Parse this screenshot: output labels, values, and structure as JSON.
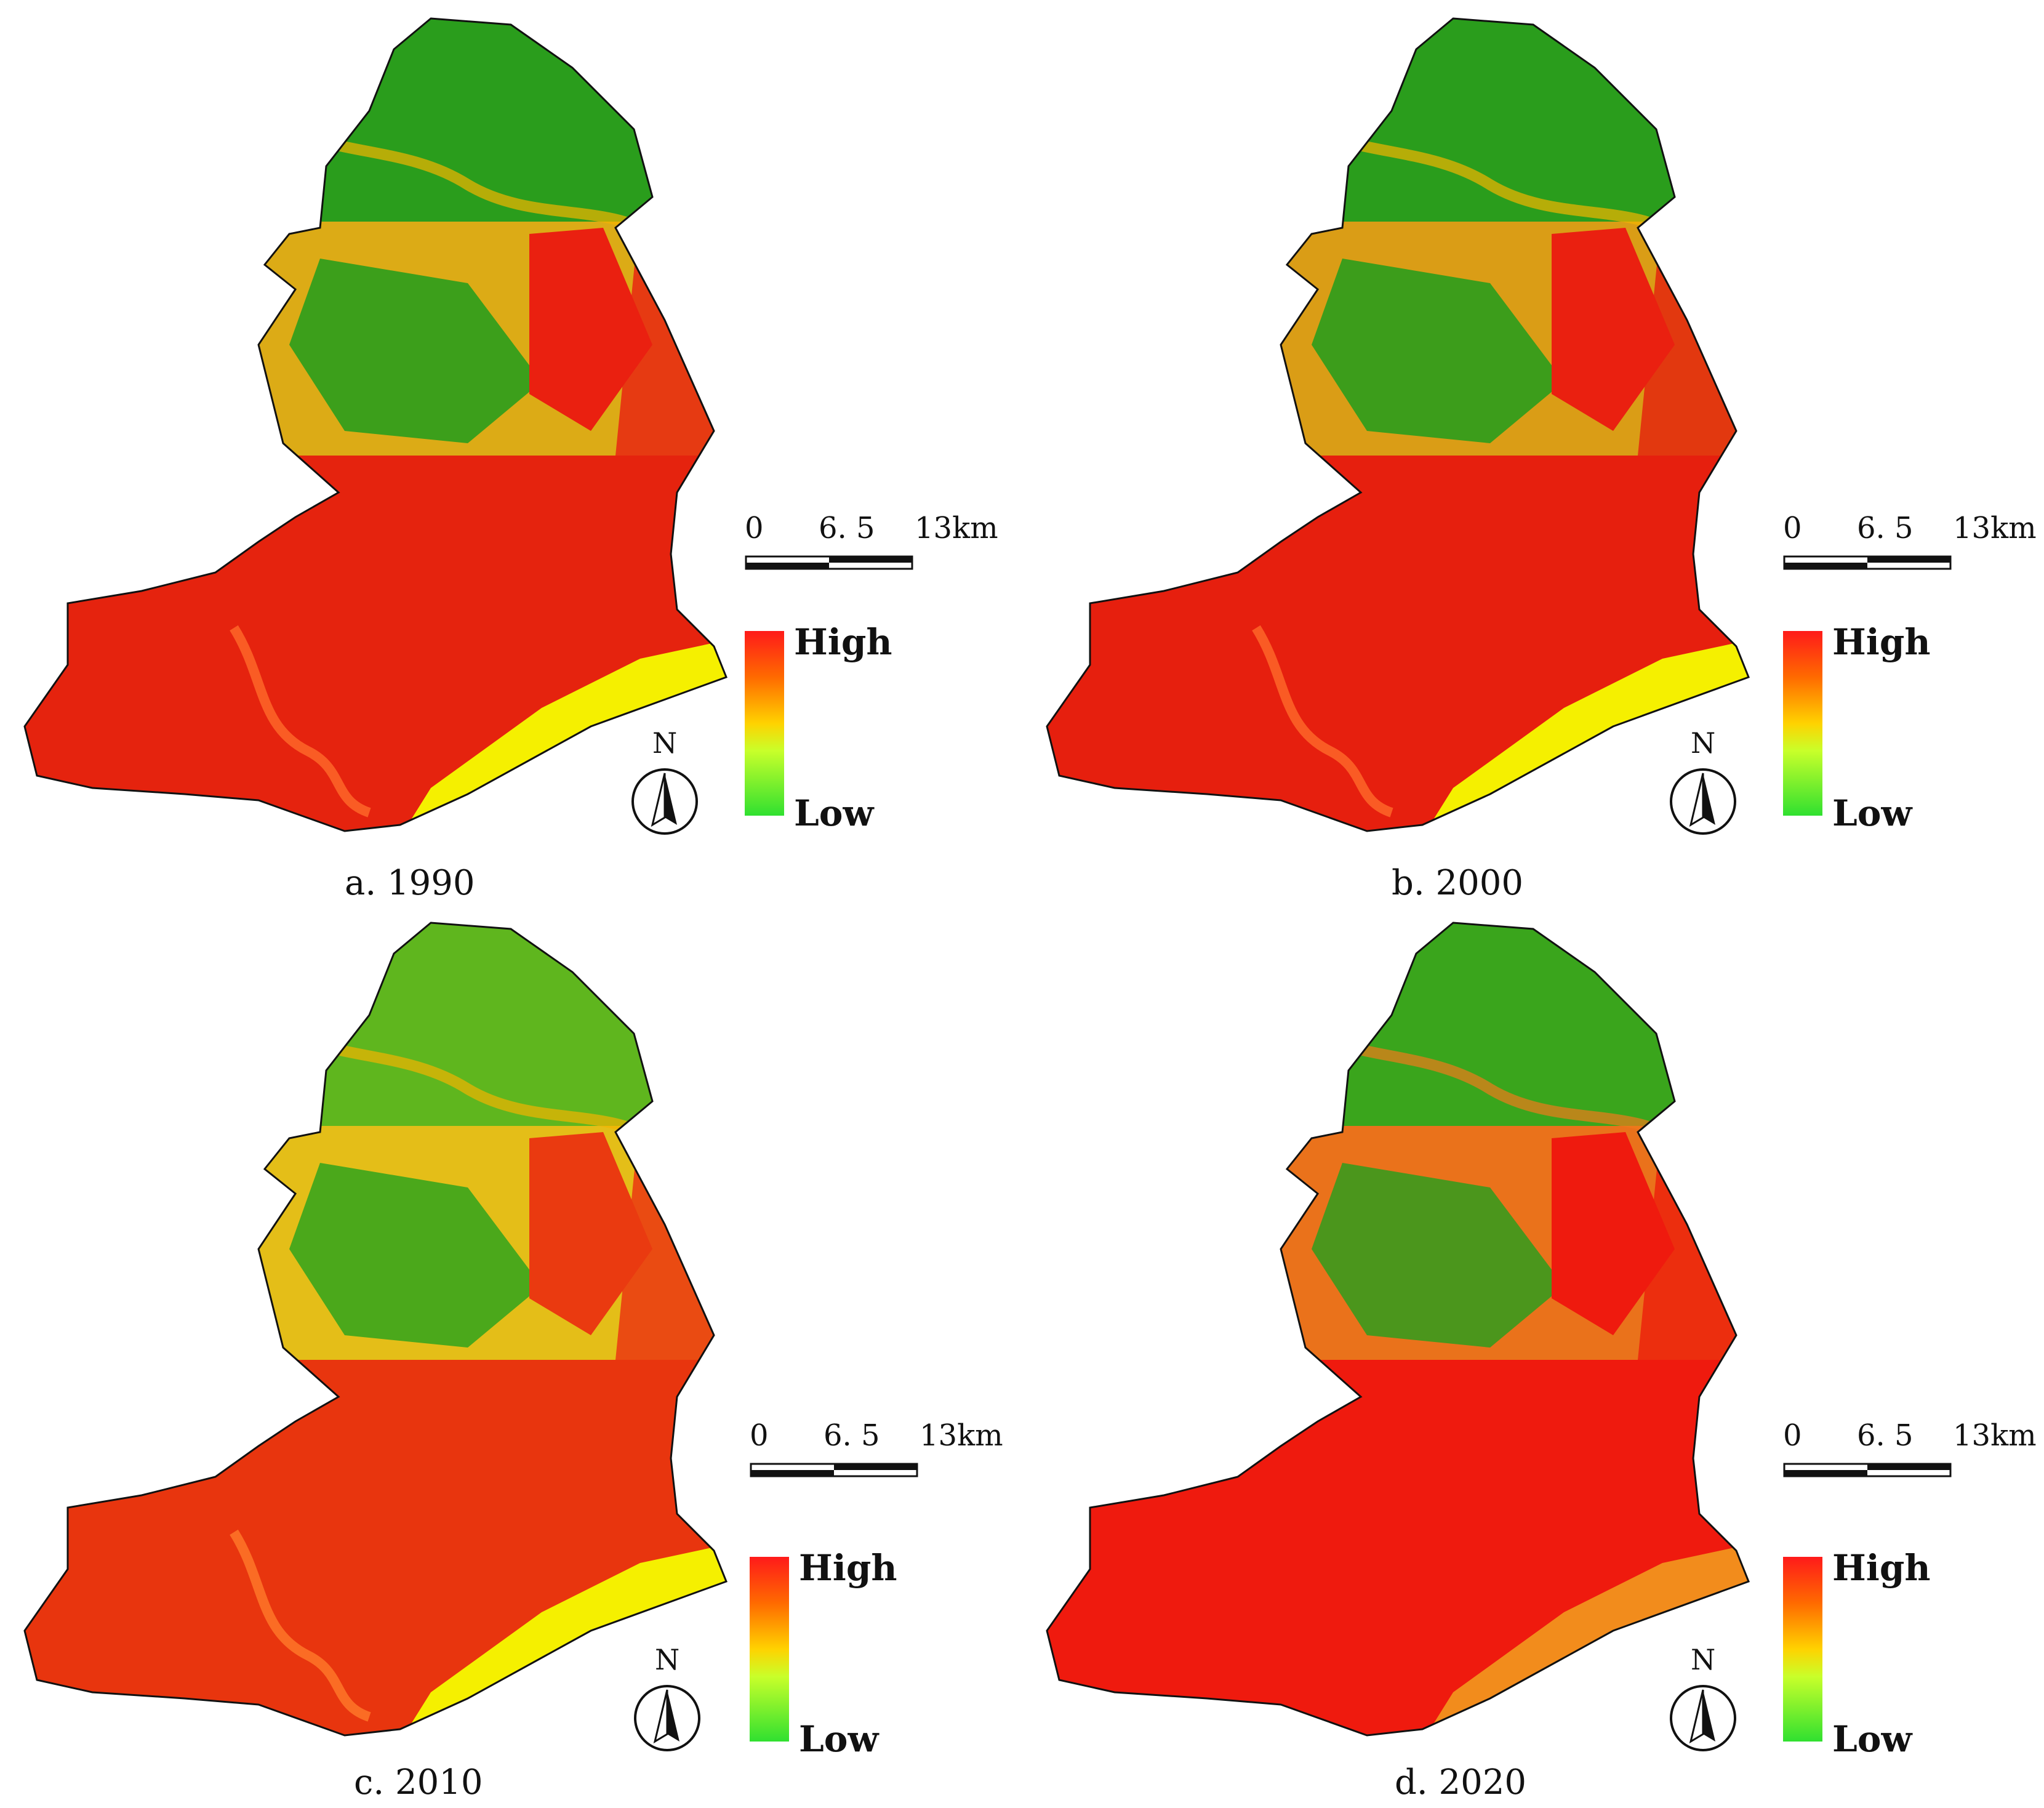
{
  "panels": [
    {
      "caption": "a. 1990",
      "colors": {
        "north": "#2a9d1c",
        "mid": "#e63a12",
        "south": "#e5230e",
        "coast": "#f5f000"
      }
    },
    {
      "caption": "b. 2000",
      "colors": {
        "north": "#2a9d1c",
        "mid": "#e2380f",
        "south": "#e61f0e",
        "coast": "#f5f000"
      }
    },
    {
      "caption": "c. 2010",
      "colors": {
        "north": "#5fb61e",
        "mid": "#ea4b12",
        "south": "#e8350e",
        "coast": "#f5f000"
      }
    },
    {
      "caption": "d. 2020",
      "colors": {
        "north": "#3aa51c",
        "mid": "#ec2e0e",
        "south": "#ef1a0e",
        "coast": "#f28c1c"
      }
    }
  ],
  "scale": {
    "zero": "0",
    "mid": "6. 5",
    "end": "13km"
  },
  "legend": {
    "high": "High",
    "low": "Low"
  },
  "north_label": "N"
}
